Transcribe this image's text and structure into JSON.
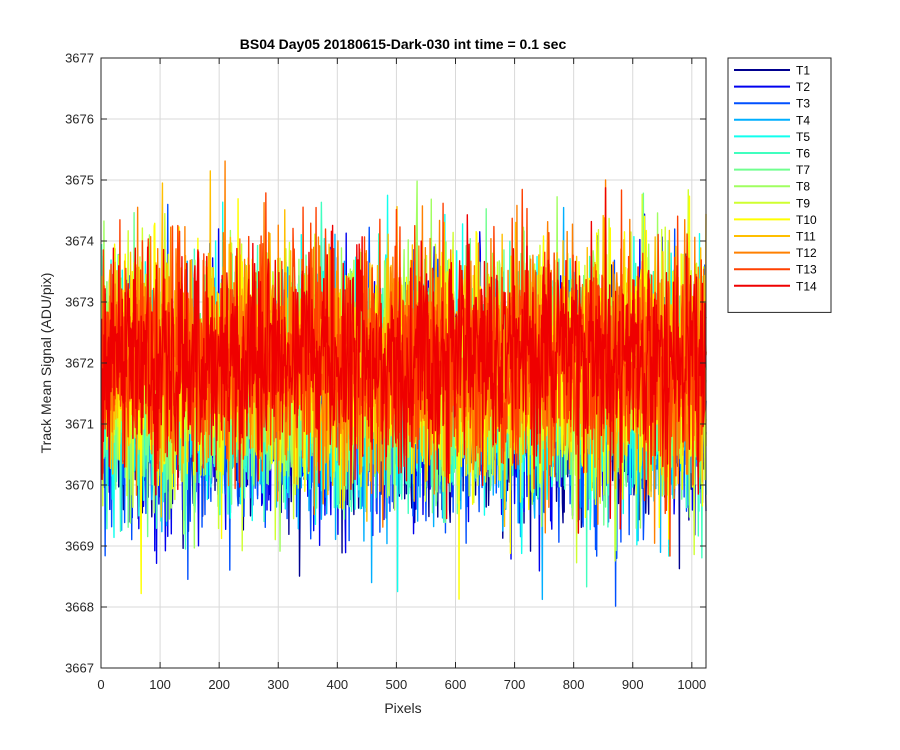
{
  "chart_data": {
    "type": "line",
    "title": "BS04 Day05 20180615-Dark-030 int time = 0.1 sec",
    "xlabel": "Pixels",
    "ylabel": "Track Mean Signal (ADU/pix)",
    "xlim": [
      0,
      1024
    ],
    "ylim": [
      3667,
      3677
    ],
    "xticks": [
      "0",
      "100",
      "200",
      "300",
      "400",
      "500",
      "600",
      "700",
      "800",
      "900",
      "1000"
    ],
    "yticks": [
      "3667",
      "3668",
      "3669",
      "3670",
      "3671",
      "3672",
      "3673",
      "3674",
      "3675",
      "3676",
      "3677"
    ],
    "grid": true,
    "legend_position": "outside-top-right",
    "x_range": [
      1,
      1024
    ],
    "series": [
      {
        "name": "T1",
        "color": "#00008f",
        "mean": 3671.2,
        "noise_sd": 0.95,
        "min": 3667.5,
        "max": 3674.5
      },
      {
        "name": "T2",
        "color": "#0000ef",
        "mean": 3671.3,
        "noise_sd": 0.95,
        "min": 3667.9,
        "max": 3674.6
      },
      {
        "name": "T3",
        "color": "#0050ff",
        "mean": 3671.4,
        "noise_sd": 0.95,
        "min": 3668.0,
        "max": 3674.6
      },
      {
        "name": "T4",
        "color": "#00afff",
        "mean": 3671.5,
        "noise_sd": 0.95,
        "min": 3668.0,
        "max": 3674.8
      },
      {
        "name": "T5",
        "color": "#10ffef",
        "mean": 3671.6,
        "noise_sd": 0.95,
        "min": 3668.2,
        "max": 3675.7
      },
      {
        "name": "T6",
        "color": "#40ffbf",
        "mean": 3671.6,
        "noise_sd": 0.95,
        "min": 3668.3,
        "max": 3675.0
      },
      {
        "name": "T7",
        "color": "#70ff8f",
        "mean": 3671.7,
        "noise_sd": 0.95,
        "min": 3668.4,
        "max": 3675.0
      },
      {
        "name": "T8",
        "color": "#a0ff60",
        "mean": 3671.8,
        "noise_sd": 0.95,
        "min": 3668.4,
        "max": 3675.0
      },
      {
        "name": "T9",
        "color": "#cfff30",
        "mean": 3671.9,
        "noise_sd": 0.95,
        "min": 3668.5,
        "max": 3675.1
      },
      {
        "name": "T10",
        "color": "#ffff00",
        "mean": 3671.9,
        "noise_sd": 0.95,
        "min": 3668.1,
        "max": 3675.2
      },
      {
        "name": "T11",
        "color": "#ffbf00",
        "mean": 3672.0,
        "noise_sd": 0.95,
        "min": 3667.7,
        "max": 3675.2
      },
      {
        "name": "T12",
        "color": "#ff8000",
        "mean": 3672.0,
        "noise_sd": 0.95,
        "min": 3668.6,
        "max": 3675.4
      },
      {
        "name": "T13",
        "color": "#ff4000",
        "mean": 3672.1,
        "noise_sd": 0.9,
        "min": 3668.7,
        "max": 3675.5
      },
      {
        "name": "T14",
        "color": "#ef0000",
        "mean": 3672.1,
        "noise_sd": 0.85,
        "min": 3669.0,
        "max": 3676.3
      }
    ]
  }
}
